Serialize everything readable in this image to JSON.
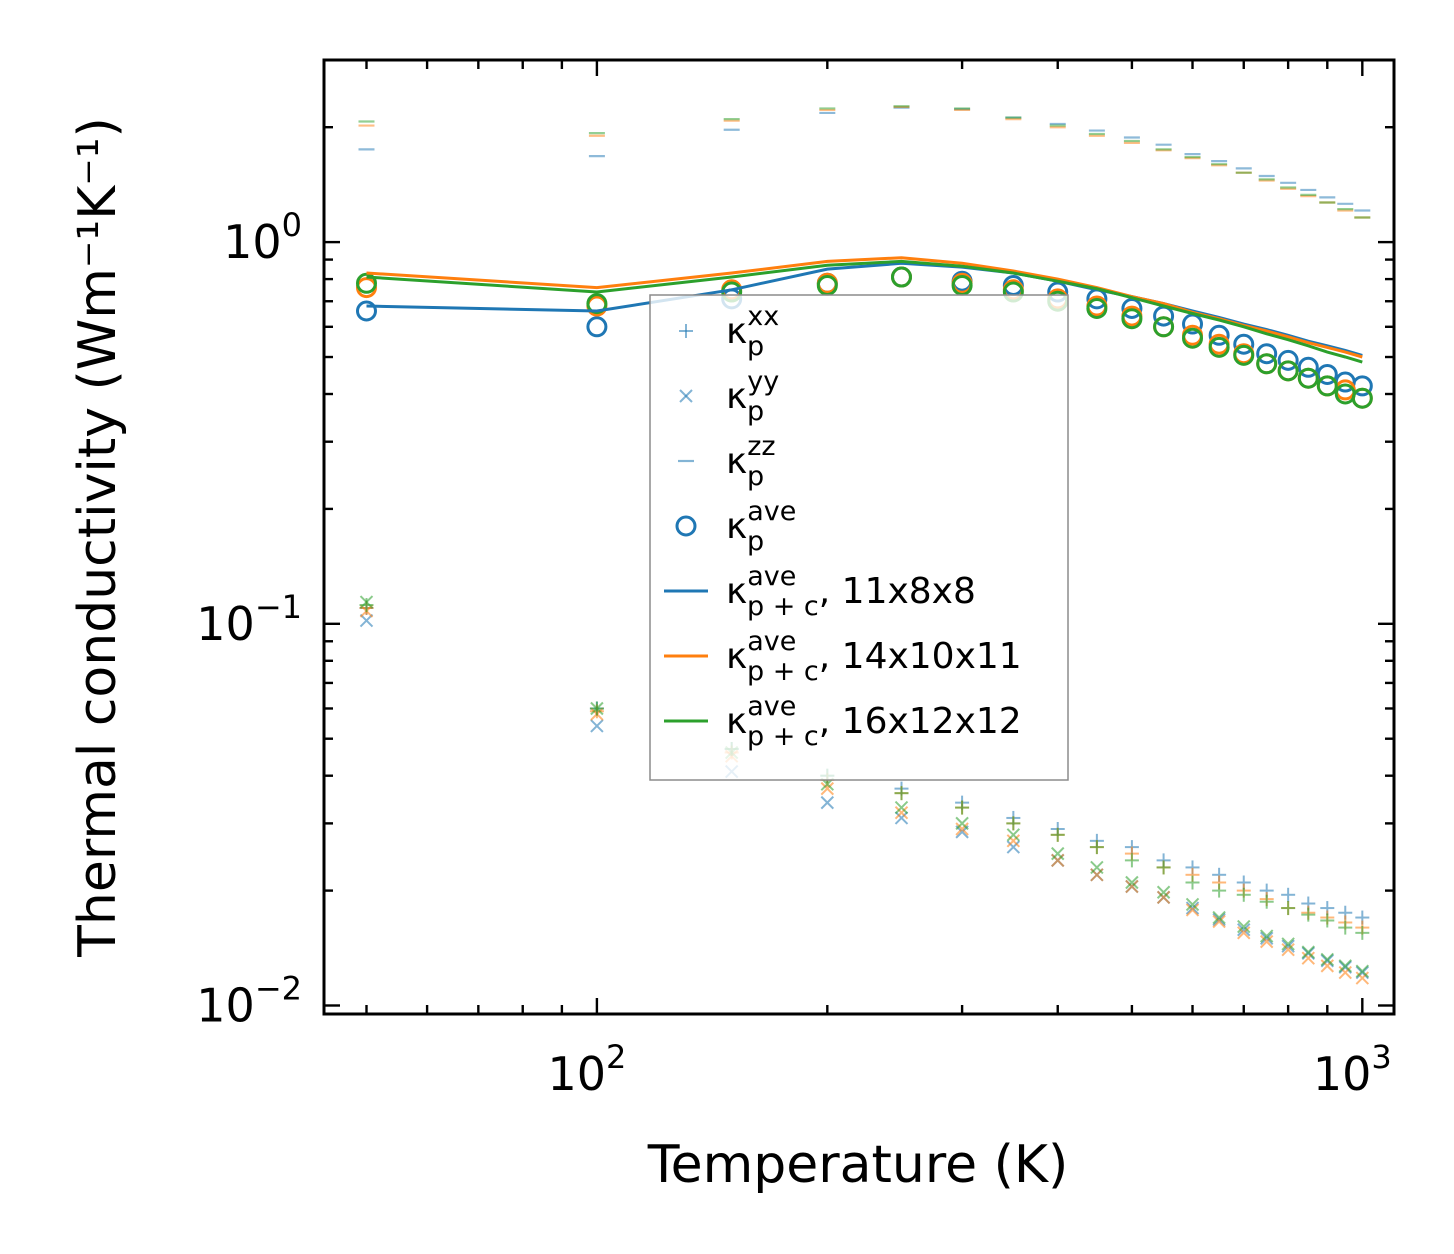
{
  "chart_data": {
    "type": "scatter",
    "scale": {
      "x": "log",
      "y": "log"
    },
    "xlabel": "Temperature (K)",
    "ylabel": "Thermal conductivity (Wm⁻¹K⁻¹)",
    "xlim": [
      44,
      1100
    ],
    "ylim": [
      0.0095,
      3.0
    ],
    "x_ticks": [
      {
        "value": 100,
        "mantissa": "10",
        "exp": "2"
      },
      {
        "value": 1000,
        "mantissa": "10",
        "exp": "3"
      }
    ],
    "y_ticks": [
      {
        "value": 0.01,
        "mantissa": "10",
        "exp": "−2"
      },
      {
        "value": 0.1,
        "mantissa": "10",
        "exp": "−1"
      },
      {
        "value": 1,
        "mantissa": "10",
        "exp": "0"
      }
    ],
    "x": [
      50,
      100,
      150,
      200,
      250,
      300,
      350,
      400,
      450,
      500,
      550,
      600,
      650,
      700,
      750,
      800,
      850,
      900,
      950,
      1000
    ],
    "colors": {
      "c1": "#1f77b4",
      "c2": "#ff7f0e",
      "c3": "#2ca02c"
    },
    "meshes": [
      {
        "name": "11x8x8",
        "color": "#1f77b4",
        "k_xx": [
          0.11,
          0.06,
          0.047,
          0.04,
          0.037,
          0.034,
          0.031,
          0.029,
          0.027,
          0.026,
          0.024,
          0.023,
          0.022,
          0.021,
          0.02,
          0.0195,
          0.0185,
          0.018,
          0.0175,
          0.017
        ],
        "k_yy": [
          0.102,
          0.054,
          0.041,
          0.034,
          0.031,
          0.0285,
          0.026,
          0.024,
          0.022,
          0.0205,
          0.0192,
          0.018,
          0.0168,
          0.0158,
          0.015,
          0.0143,
          0.0137,
          0.0131,
          0.0126,
          0.0122
        ],
        "k_zz": [
          1.75,
          1.68,
          1.97,
          2.18,
          2.25,
          2.23,
          2.12,
          2.04,
          1.96,
          1.88,
          1.8,
          1.7,
          1.63,
          1.56,
          1.49,
          1.43,
          1.37,
          1.31,
          1.26,
          1.21
        ],
        "k_ave": [
          0.66,
          0.6,
          0.71,
          0.78,
          0.81,
          0.79,
          0.77,
          0.74,
          0.71,
          0.67,
          0.64,
          0.61,
          0.57,
          0.54,
          0.51,
          0.49,
          0.47,
          0.45,
          0.43,
          0.42
        ],
        "k_pc_ave": [
          0.68,
          0.66,
          0.75,
          0.85,
          0.88,
          0.86,
          0.83,
          0.79,
          0.75,
          0.72,
          0.69,
          0.66,
          0.635,
          0.61,
          0.59,
          0.57,
          0.55,
          0.535,
          0.52,
          0.505
        ]
      },
      {
        "name": "14x10x11",
        "color": "#ff7f0e",
        "k_xx": [
          0.11,
          0.059,
          0.046,
          0.039,
          0.036,
          0.033,
          0.03,
          0.028,
          0.026,
          0.025,
          0.023,
          0.022,
          0.021,
          0.02,
          0.019,
          0.018,
          0.0175,
          0.017,
          0.0165,
          0.016
        ],
        "k_yy": [
          0.108,
          0.058,
          0.045,
          0.037,
          0.032,
          0.029,
          0.027,
          0.024,
          0.022,
          0.0205,
          0.0192,
          0.0178,
          0.0166,
          0.0155,
          0.0147,
          0.014,
          0.0133,
          0.0127,
          0.0122,
          0.0118
        ],
        "k_zz": [
          2.02,
          1.9,
          2.08,
          2.22,
          2.26,
          2.22,
          2.1,
          2.0,
          1.9,
          1.82,
          1.74,
          1.66,
          1.59,
          1.52,
          1.45,
          1.38,
          1.32,
          1.27,
          1.21,
          1.16
        ],
        "k_ave": [
          0.76,
          0.68,
          0.75,
          0.78,
          0.81,
          0.78,
          0.75,
          0.71,
          0.68,
          0.64,
          0.6,
          0.57,
          0.54,
          0.51,
          0.48,
          0.46,
          0.44,
          0.42,
          0.41,
          0.39
        ],
        "k_pc_ave": [
          0.83,
          0.76,
          0.83,
          0.89,
          0.91,
          0.88,
          0.84,
          0.8,
          0.76,
          0.72,
          0.69,
          0.655,
          0.63,
          0.605,
          0.585,
          0.565,
          0.545,
          0.53,
          0.515,
          0.5
        ]
      },
      {
        "name": "16x12x12",
        "color": "#2ca02c",
        "k_xx": [
          0.112,
          0.06,
          0.047,
          0.04,
          0.036,
          0.033,
          0.03,
          0.028,
          0.026,
          0.024,
          0.023,
          0.021,
          0.02,
          0.0195,
          0.0187,
          0.018,
          0.0173,
          0.0167,
          0.016,
          0.0155
        ],
        "k_yy": [
          0.114,
          0.06,
          0.046,
          0.038,
          0.033,
          0.03,
          0.028,
          0.025,
          0.023,
          0.021,
          0.0198,
          0.0184,
          0.017,
          0.0161,
          0.0152,
          0.0145,
          0.0138,
          0.0132,
          0.0127,
          0.0123
        ],
        "k_zz": [
          2.07,
          1.93,
          2.1,
          2.24,
          2.27,
          2.24,
          2.12,
          2.02,
          1.92,
          1.84,
          1.75,
          1.67,
          1.6,
          1.52,
          1.46,
          1.39,
          1.33,
          1.27,
          1.22,
          1.16
        ],
        "k_ave": [
          0.78,
          0.69,
          0.74,
          0.77,
          0.81,
          0.77,
          0.74,
          0.7,
          0.67,
          0.63,
          0.6,
          0.56,
          0.53,
          0.505,
          0.48,
          0.46,
          0.44,
          0.42,
          0.4,
          0.39
        ],
        "k_pc_ave": [
          0.81,
          0.74,
          0.81,
          0.87,
          0.89,
          0.865,
          0.83,
          0.79,
          0.755,
          0.715,
          0.68,
          0.65,
          0.625,
          0.6,
          0.575,
          0.555,
          0.535,
          0.515,
          0.5,
          0.485
        ]
      }
    ],
    "legend": {
      "position": "center",
      "entries": [
        {
          "marker": "plus",
          "base": "κ",
          "sub": "p",
          "sup": "xx",
          "suffix": ""
        },
        {
          "marker": "cross",
          "base": "κ",
          "sub": "p",
          "sup": "yy",
          "suffix": ""
        },
        {
          "marker": "dash",
          "base": "κ",
          "sub": "p",
          "sup": "zz",
          "suffix": ""
        },
        {
          "marker": "circle",
          "base": "κ",
          "sub": "p",
          "sup": "ave",
          "suffix": ""
        },
        {
          "marker": "line",
          "color": "#1f77b4",
          "base": "κ",
          "sub": "p + c",
          "sup": "ave",
          "suffix": ", 11x8x8"
        },
        {
          "marker": "line",
          "color": "#ff7f0e",
          "base": "κ",
          "sub": "p + c",
          "sup": "ave",
          "suffix": ", 14x10x11"
        },
        {
          "marker": "line",
          "color": "#2ca02c",
          "base": "κ",
          "sub": "p + c",
          "sup": "ave",
          "suffix": ", 16x12x12"
        }
      ]
    }
  }
}
